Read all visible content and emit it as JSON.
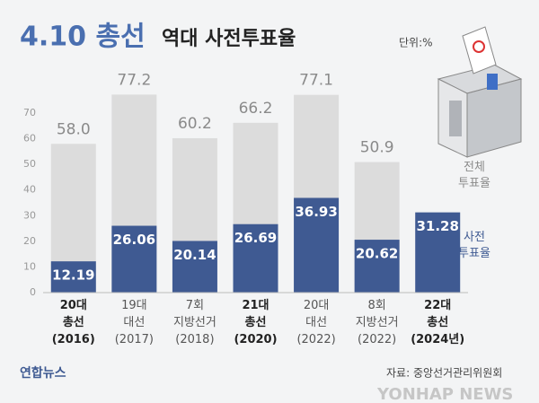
{
  "chart_data": {
    "type": "overlap_bar",
    "title": "4.10 총선",
    "subtitle": "역대 사전투표율",
    "unit": "단위:%",
    "source": "자료: 중앙선거관리위원회",
    "logo": "연합뉴스",
    "watermark": "YONHAP NEWS",
    "categories": [
      "20대\n총선\n(2016)",
      "19대\n대선\n(2017)",
      "7회\n지방선거\n(2018)",
      "21대\n총선\n(2020)",
      "20대\n대선\n(2022)",
      "8회\n지방선거\n(2022)",
      "22대\n총선\n(2024년)"
    ],
    "series": [
      {
        "name": "전체\n투표율",
        "color": "#dcdcdc",
        "label_color": "#8a8a8a",
        "values": [
          58.0,
          77.2,
          60.2,
          66.2,
          77.1,
          50.9,
          null
        ],
        "value_labels": [
          "58.0",
          "77.2",
          "60.2",
          "66.2",
          "77.1",
          "50.9",
          null
        ]
      },
      {
        "name": "사전\n투표율",
        "color": "#3f5a92",
        "label_color": "#3f5a92",
        "values": [
          12.19,
          26.06,
          20.14,
          26.69,
          36.93,
          20.62,
          31.28
        ]
      }
    ],
    "ylim": [
      0,
      80
    ],
    "yticks": [
      0,
      10,
      20,
      30,
      40,
      50,
      60,
      70
    ],
    "grid": false
  }
}
